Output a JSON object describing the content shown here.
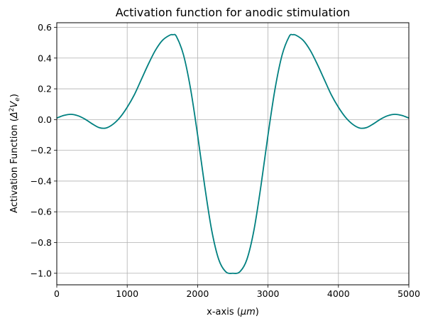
{
  "chart_data": {
    "type": "line",
    "title": "Activation function for anodic stimulation",
    "xlabel_prefix": "x-axis (",
    "xlabel_unit": "μm",
    "xlabel_suffix": ")",
    "ylabel_prefix": "Activation Function (",
    "ylabel_delta": "Δ",
    "ylabel_sup": "2",
    "ylabel_v": "V",
    "ylabel_sub": "e",
    "ylabel_suffix": ")",
    "xlim": [
      0,
      5000
    ],
    "ylim": [
      -1.075,
      0.63
    ],
    "grid": true,
    "line_color": "#008080",
    "xticks": [
      0,
      1000,
      2000,
      3000,
      4000,
      5000
    ],
    "xtick_labels": [
      "0",
      "1000",
      "2000",
      "3000",
      "4000",
      "5000"
    ],
    "yticks": [
      0.6,
      0.4,
      0.2,
      0.0,
      -0.2,
      -0.4,
      -0.6,
      -0.8,
      -1.0
    ],
    "ytick_labels": [
      "0.6",
      "0.4",
      "0.2",
      "0.0",
      "−0.2",
      "−0.4",
      "−0.6",
      "−0.8",
      "−1.0"
    ],
    "series": [
      {
        "x": [
          0,
          100,
          200,
          300,
          400,
          500,
          600,
          700,
          800,
          900,
          1000,
          1100,
          1200,
          1300,
          1400,
          1500,
          1600,
          1650,
          1700,
          1800,
          1900,
          2000,
          2100,
          2200,
          2300,
          2400,
          2500,
          2600,
          2700,
          2800,
          2900,
          3000,
          3100,
          3200,
          3300,
          3350,
          3400,
          3500,
          3600,
          3700,
          3800,
          3900,
          4000,
          4100,
          4200,
          4300,
          4400,
          4500,
          4600,
          4700,
          4800,
          4900,
          5000
        ],
        "y": [
          0.01,
          0.027,
          0.034,
          0.025,
          0.003,
          -0.027,
          -0.052,
          -0.055,
          -0.03,
          0.015,
          0.08,
          0.16,
          0.26,
          0.36,
          0.45,
          0.515,
          0.548,
          0.552,
          0.54,
          0.42,
          0.2,
          -0.1,
          -0.43,
          -0.72,
          -0.91,
          -0.99,
          -1.0,
          -0.99,
          -0.91,
          -0.72,
          -0.43,
          -0.1,
          0.2,
          0.42,
          0.54,
          0.552,
          0.548,
          0.515,
          0.45,
          0.36,
          0.26,
          0.16,
          0.08,
          0.015,
          -0.03,
          -0.055,
          -0.052,
          -0.027,
          0.003,
          0.025,
          0.034,
          0.027,
          0.01
        ]
      }
    ]
  }
}
